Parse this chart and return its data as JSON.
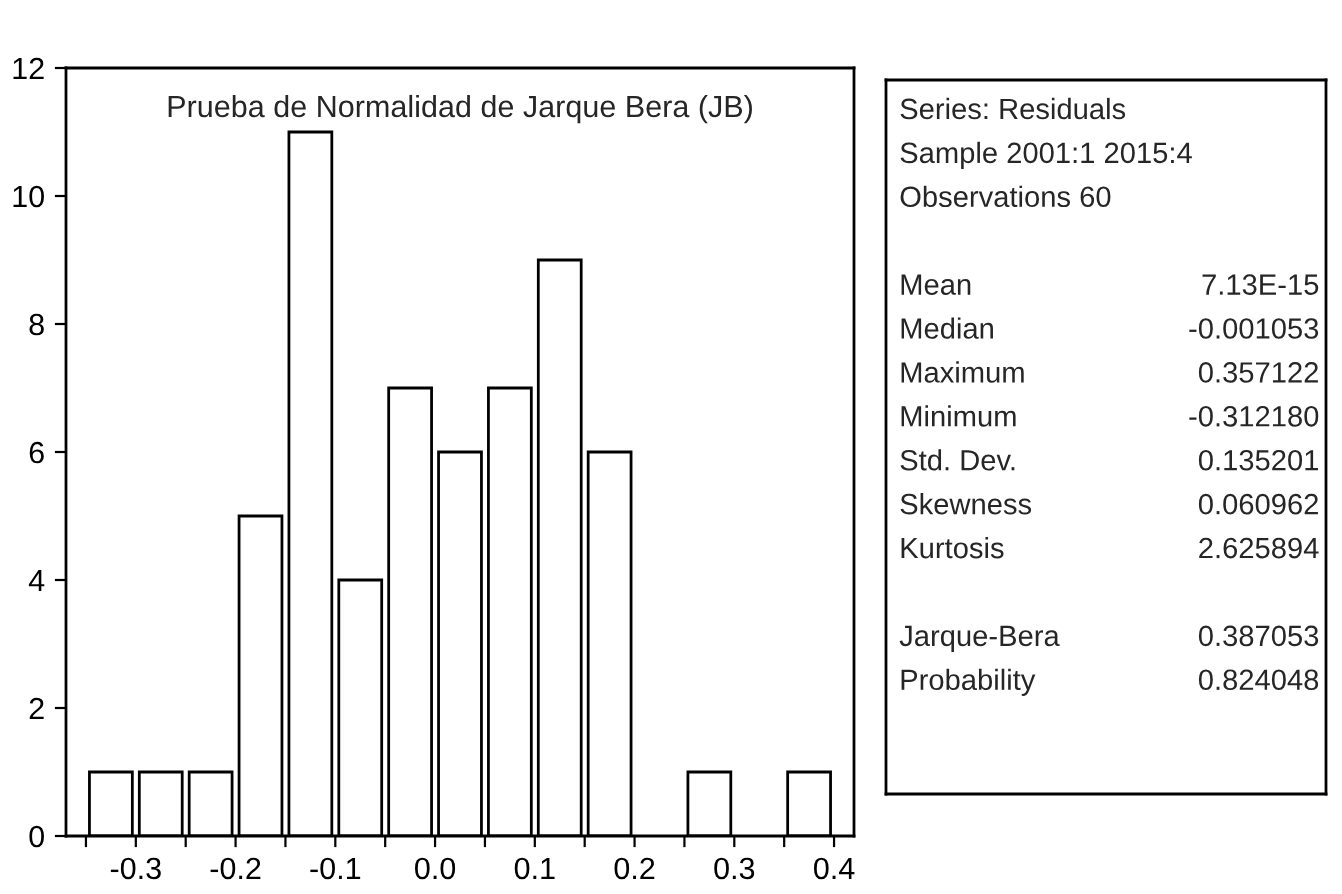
{
  "chart_data": [
    {
      "type": "histogram",
      "title": "Prueba de Normalidad de Jarque Bera (JB)",
      "bins": [
        -0.35,
        -0.3,
        -0.25,
        -0.2,
        -0.15,
        -0.1,
        -0.05,
        0.0,
        0.05,
        0.1,
        0.15,
        0.2,
        0.25,
        0.3,
        0.35,
        0.4
      ],
      "values": [
        1,
        1,
        1,
        5,
        11,
        4,
        7,
        6,
        7,
        9,
        6,
        0,
        1,
        0,
        1
      ],
      "color": "#ffffff",
      "xlim": [
        -0.37,
        0.42
      ],
      "xticks": [
        {
          "value": -0.35,
          "label": null
        },
        {
          "value": -0.3,
          "label": "-0.3"
        },
        {
          "value": -0.25,
          "label": null
        },
        {
          "value": -0.2,
          "label": "-0.2"
        },
        {
          "value": -0.15,
          "label": null
        },
        {
          "value": -0.1,
          "label": "-0.1"
        },
        {
          "value": -0.05,
          "label": null
        },
        {
          "value": 0.0,
          "label": "0.0"
        },
        {
          "value": 0.05,
          "label": null
        },
        {
          "value": 0.1,
          "label": "0.1"
        },
        {
          "value": 0.15,
          "label": null
        },
        {
          "value": 0.2,
          "label": "0.2"
        },
        {
          "value": 0.25,
          "label": null
        },
        {
          "value": 0.3,
          "label": "0.3"
        },
        {
          "value": 0.35,
          "label": null
        },
        {
          "value": 0.4,
          "label": "0.4"
        }
      ],
      "ylim": [
        0,
        12
      ],
      "yticks": [
        0,
        2,
        4,
        6,
        8,
        10,
        12
      ],
      "grid": false
    },
    {
      "type": "other",
      "annotations": [
        "Series: Residuals",
        "Sample 2001:1 2015:4",
        "Observations 60"
      ],
      "categories": [
        "Mean",
        "Median",
        "Maximum",
        "Minimum",
        "Std. Dev.",
        "Skewness",
        "Kurtosis",
        null,
        "Jarque-Bera",
        "Probability"
      ],
      "values": [
        7.13e-15,
        -0.001053,
        0.357122,
        -0.31218,
        0.135201,
        0.060962,
        2.625894,
        null,
        0.387053,
        0.824048
      ],
      "value_labels": [
        "7.13E-15",
        "-0.001053",
        "0.357122",
        "-0.312180",
        "0.135201",
        "0.060962",
        "2.625894",
        null,
        "0.387053",
        "0.824048"
      ]
    }
  ]
}
